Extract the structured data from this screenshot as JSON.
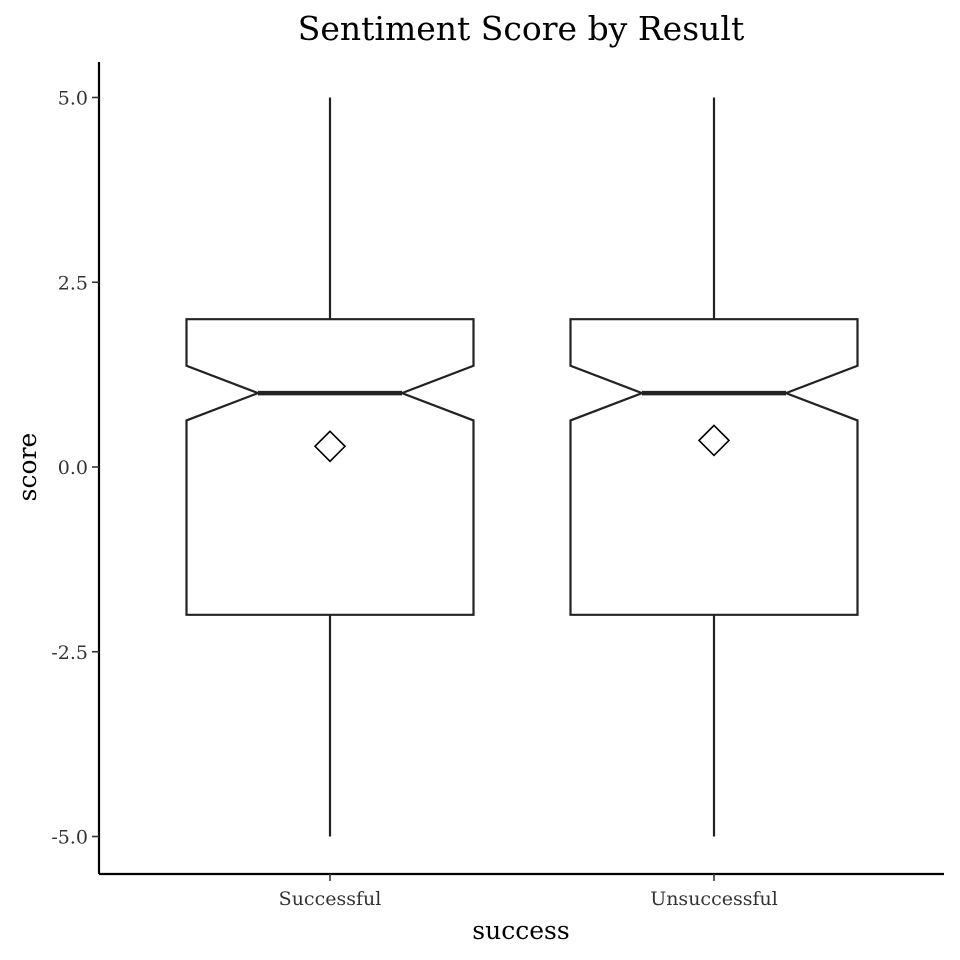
{
  "chart_data": {
    "type": "boxplot",
    "title": "Sentiment Score by Result",
    "xlabel": "success",
    "ylabel": "score",
    "categories": [
      "Successful",
      "Unsuccessful"
    ],
    "ylim": [
      -6.0,
      5.5
    ],
    "yticks": [
      "5.0",
      "2.5",
      "0.0",
      "-2.5",
      "-5.0"
    ],
    "notched": true,
    "mean_marker": "diamond",
    "grid": false,
    "boxes": [
      {
        "category": "Successful",
        "min": -5.0,
        "q1": -2.0,
        "median": 1.0,
        "q3": 2.0,
        "max": 5.0,
        "notch_low": 0.63,
        "notch_high": 1.37,
        "mean": 0.28
      },
      {
        "category": "Unsuccessful",
        "min": -5.0,
        "q1": -2.0,
        "median": 1.0,
        "q3": 2.0,
        "max": 5.0,
        "notch_low": 0.63,
        "notch_high": 1.37,
        "mean": 0.36
      }
    ]
  }
}
